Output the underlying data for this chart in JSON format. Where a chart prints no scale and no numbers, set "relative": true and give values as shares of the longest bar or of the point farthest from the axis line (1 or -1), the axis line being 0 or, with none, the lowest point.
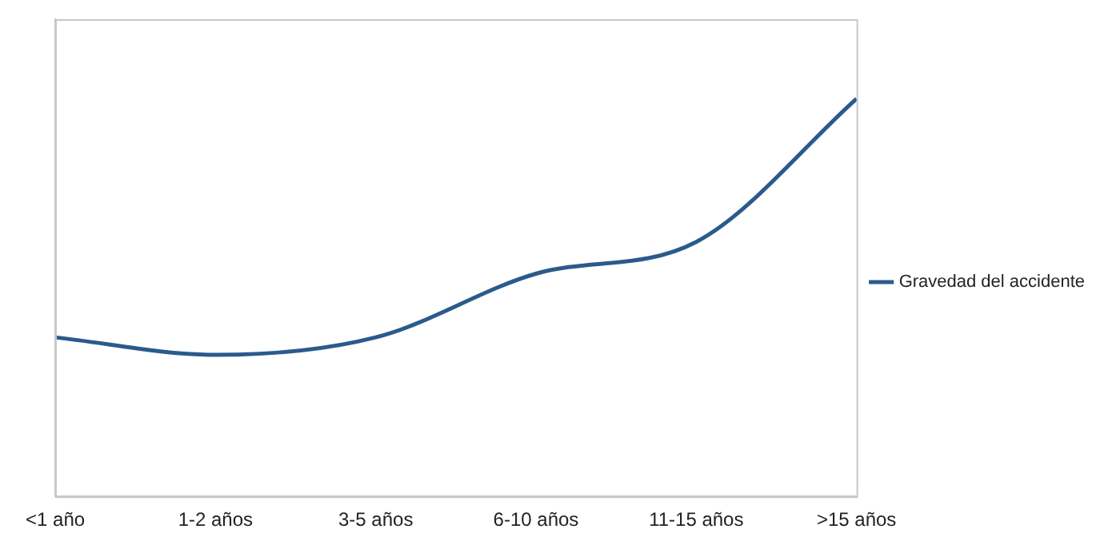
{
  "chart_data": {
    "type": "line",
    "relative": true,
    "categories": [
      "<1 año",
      "1-2 años",
      "3-5 años",
      "6-10 años",
      "11-15 años",
      ">15 años"
    ],
    "series": [
      {
        "name": "Gravedad del accidente",
        "color": "#2b5a8c",
        "values": [
          0.4,
          0.356,
          0.4,
          0.56,
          0.64,
          1
        ]
      }
    ],
    "grid": false,
    "legend": "right",
    "marker": "none",
    "line_style": "solid"
  }
}
